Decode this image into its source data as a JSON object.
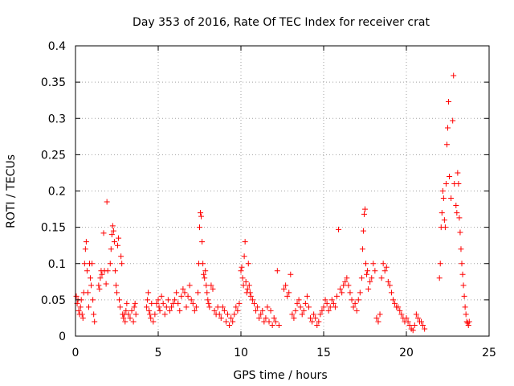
{
  "chart_data": {
    "type": "scatter",
    "title": "Day 353 of 2016, Rate Of TEC Index for receiver crat",
    "xlabel": "GPS time / hours",
    "ylabel": "ROTI / TECUs",
    "xlim": [
      0,
      25
    ],
    "ylim": [
      0,
      0.4
    ],
    "x_ticks": [
      "0",
      "5",
      "10",
      "15",
      "20",
      "25"
    ],
    "y_ticks": [
      "0",
      "0.05",
      "0.1",
      "0.15",
      "0.2",
      "0.25",
      "0.3",
      "0.35",
      "0.4"
    ],
    "grid": true,
    "marker": "+",
    "marker_color": "#ff0000",
    "series": [
      {
        "points": [
          [
            0.05,
            0.055
          ],
          [
            0.1,
            0.045
          ],
          [
            0.15,
            0.05
          ],
          [
            0.2,
            0.035
          ],
          [
            0.25,
            0.03
          ],
          [
            0.3,
            0.04
          ],
          [
            0.35,
            0.05
          ],
          [
            0.4,
            0.03
          ],
          [
            0.45,
            0.025
          ],
          [
            0.5,
            0.06
          ],
          [
            0.55,
            0.1
          ],
          [
            0.6,
            0.12
          ],
          [
            0.65,
            0.13
          ],
          [
            0.7,
            0.09
          ],
          [
            0.75,
            0.06
          ],
          [
            0.8,
            0.04
          ],
          [
            0.85,
            0.1
          ],
          [
            0.9,
            0.08
          ],
          [
            0.95,
            0.07
          ],
          [
            1.0,
            0.1
          ],
          [
            1.05,
            0.05
          ],
          [
            1.1,
            0.03
          ],
          [
            1.15,
            0.02
          ],
          [
            1.4,
            0.07
          ],
          [
            1.45,
            0.065
          ],
          [
            1.5,
            0.08
          ],
          [
            1.55,
            0.09
          ],
          [
            1.6,
            0.085
          ],
          [
            1.7,
            0.142
          ],
          [
            1.75,
            0.09
          ],
          [
            1.85,
            0.072
          ],
          [
            1.9,
            0.185
          ],
          [
            1.95,
            0.09
          ],
          [
            2.1,
            0.1
          ],
          [
            2.15,
            0.12
          ],
          [
            2.2,
            0.14
          ],
          [
            2.25,
            0.152
          ],
          [
            2.3,
            0.145
          ],
          [
            2.35,
            0.13
          ],
          [
            2.4,
            0.09
          ],
          [
            2.45,
            0.07
          ],
          [
            2.5,
            0.06
          ],
          [
            2.55,
            0.125
          ],
          [
            2.6,
            0.135
          ],
          [
            2.65,
            0.05
          ],
          [
            2.7,
            0.04
          ],
          [
            2.75,
            0.11
          ],
          [
            2.8,
            0.1
          ],
          [
            2.85,
            0.03
          ],
          [
            2.9,
            0.025
          ],
          [
            2.95,
            0.03
          ],
          [
            3.0,
            0.02
          ],
          [
            3.05,
            0.035
          ],
          [
            3.1,
            0.045
          ],
          [
            3.2,
            0.03
          ],
          [
            3.3,
            0.025
          ],
          [
            3.4,
            0.035
          ],
          [
            3.5,
            0.02
          ],
          [
            3.55,
            0.04
          ],
          [
            3.6,
            0.045
          ],
          [
            3.65,
            0.03
          ],
          [
            4.3,
            0.04
          ],
          [
            4.35,
            0.05
          ],
          [
            4.4,
            0.06
          ],
          [
            4.45,
            0.035
          ],
          [
            4.5,
            0.03
          ],
          [
            4.55,
            0.025
          ],
          [
            4.6,
            0.045
          ],
          [
            4.7,
            0.02
          ],
          [
            4.8,
            0.03
          ],
          [
            4.9,
            0.045
          ],
          [
            5.0,
            0.05
          ],
          [
            5.05,
            0.04
          ],
          [
            5.1,
            0.035
          ],
          [
            5.2,
            0.055
          ],
          [
            5.3,
            0.045
          ],
          [
            5.4,
            0.03
          ],
          [
            5.5,
            0.04
          ],
          [
            5.6,
            0.05
          ],
          [
            5.7,
            0.035
          ],
          [
            5.8,
            0.04
          ],
          [
            5.9,
            0.045
          ],
          [
            6.0,
            0.05
          ],
          [
            6.1,
            0.06
          ],
          [
            6.2,
            0.045
          ],
          [
            6.3,
            0.035
          ],
          [
            6.4,
            0.055
          ],
          [
            6.5,
            0.065
          ],
          [
            6.6,
            0.06
          ],
          [
            6.7,
            0.04
          ],
          [
            6.8,
            0.055
          ],
          [
            6.9,
            0.07
          ],
          [
            7.0,
            0.05
          ],
          [
            7.1,
            0.045
          ],
          [
            7.2,
            0.035
          ],
          [
            7.3,
            0.04
          ],
          [
            7.4,
            0.06
          ],
          [
            7.45,
            0.1
          ],
          [
            7.5,
            0.15
          ],
          [
            7.55,
            0.17
          ],
          [
            7.6,
            0.165
          ],
          [
            7.65,
            0.13
          ],
          [
            7.7,
            0.1
          ],
          [
            7.75,
            0.085
          ],
          [
            7.8,
            0.08
          ],
          [
            7.85,
            0.09
          ],
          [
            7.9,
            0.07
          ],
          [
            7.95,
            0.06
          ],
          [
            8.0,
            0.05
          ],
          [
            8.05,
            0.045
          ],
          [
            8.1,
            0.04
          ],
          [
            8.2,
            0.07
          ],
          [
            8.3,
            0.065
          ],
          [
            8.4,
            0.035
          ],
          [
            8.5,
            0.03
          ],
          [
            8.6,
            0.04
          ],
          [
            8.7,
            0.03
          ],
          [
            8.8,
            0.025
          ],
          [
            8.9,
            0.04
          ],
          [
            9.0,
            0.035
          ],
          [
            9.1,
            0.02
          ],
          [
            9.2,
            0.03
          ],
          [
            9.3,
            0.015
          ],
          [
            9.4,
            0.025
          ],
          [
            9.5,
            0.02
          ],
          [
            9.6,
            0.03
          ],
          [
            9.7,
            0.04
          ],
          [
            9.8,
            0.035
          ],
          [
            9.9,
            0.045
          ],
          [
            10.0,
            0.09
          ],
          [
            10.05,
            0.095
          ],
          [
            10.1,
            0.08
          ],
          [
            10.15,
            0.07
          ],
          [
            10.2,
            0.11
          ],
          [
            10.25,
            0.13
          ],
          [
            10.3,
            0.075
          ],
          [
            10.35,
            0.06
          ],
          [
            10.4,
            0.065
          ],
          [
            10.45,
            0.1
          ],
          [
            10.5,
            0.07
          ],
          [
            10.55,
            0.06
          ],
          [
            10.6,
            0.055
          ],
          [
            10.7,
            0.05
          ],
          [
            10.8,
            0.045
          ],
          [
            10.9,
            0.035
          ],
          [
            11.0,
            0.04
          ],
          [
            11.1,
            0.025
          ],
          [
            11.2,
            0.03
          ],
          [
            11.3,
            0.035
          ],
          [
            11.4,
            0.02
          ],
          [
            11.5,
            0.025
          ],
          [
            11.6,
            0.04
          ],
          [
            11.7,
            0.02
          ],
          [
            11.8,
            0.035
          ],
          [
            11.9,
            0.015
          ],
          [
            12.0,
            0.025
          ],
          [
            12.1,
            0.02
          ],
          [
            12.2,
            0.09
          ],
          [
            12.3,
            0.015
          ],
          [
            12.6,
            0.065
          ],
          [
            12.7,
            0.07
          ],
          [
            12.8,
            0.055
          ],
          [
            12.9,
            0.06
          ],
          [
            13.0,
            0.085
          ],
          [
            13.1,
            0.03
          ],
          [
            13.2,
            0.025
          ],
          [
            13.3,
            0.035
          ],
          [
            13.4,
            0.045
          ],
          [
            13.5,
            0.05
          ],
          [
            13.6,
            0.04
          ],
          [
            13.7,
            0.03
          ],
          [
            13.8,
            0.035
          ],
          [
            13.9,
            0.045
          ],
          [
            14.0,
            0.055
          ],
          [
            14.1,
            0.04
          ],
          [
            14.2,
            0.025
          ],
          [
            14.3,
            0.02
          ],
          [
            14.4,
            0.03
          ],
          [
            14.5,
            0.025
          ],
          [
            14.6,
            0.015
          ],
          [
            14.7,
            0.02
          ],
          [
            14.8,
            0.03
          ],
          [
            14.9,
            0.035
          ],
          [
            15.0,
            0.04
          ],
          [
            15.1,
            0.05
          ],
          [
            15.2,
            0.045
          ],
          [
            15.3,
            0.035
          ],
          [
            15.4,
            0.04
          ],
          [
            15.5,
            0.05
          ],
          [
            15.6,
            0.045
          ],
          [
            15.7,
            0.04
          ],
          [
            15.8,
            0.055
          ],
          [
            15.9,
            0.147
          ],
          [
            16.0,
            0.065
          ],
          [
            16.1,
            0.06
          ],
          [
            16.2,
            0.07
          ],
          [
            16.3,
            0.075
          ],
          [
            16.4,
            0.08
          ],
          [
            16.5,
            0.07
          ],
          [
            16.6,
            0.06
          ],
          [
            16.7,
            0.05
          ],
          [
            16.8,
            0.04
          ],
          [
            16.9,
            0.045
          ],
          [
            17.0,
            0.035
          ],
          [
            17.1,
            0.05
          ],
          [
            17.2,
            0.06
          ],
          [
            17.3,
            0.08
          ],
          [
            17.35,
            0.12
          ],
          [
            17.4,
            0.145
          ],
          [
            17.45,
            0.168
          ],
          [
            17.5,
            0.175
          ],
          [
            17.55,
            0.1
          ],
          [
            17.6,
            0.085
          ],
          [
            17.65,
            0.09
          ],
          [
            17.7,
            0.065
          ],
          [
            17.8,
            0.075
          ],
          [
            17.9,
            0.08
          ],
          [
            18.0,
            0.1
          ],
          [
            18.1,
            0.09
          ],
          [
            18.2,
            0.025
          ],
          [
            18.3,
            0.02
          ],
          [
            18.4,
            0.03
          ],
          [
            18.5,
            0.08
          ],
          [
            18.6,
            0.1
          ],
          [
            18.7,
            0.09
          ],
          [
            18.8,
            0.095
          ],
          [
            18.9,
            0.075
          ],
          [
            19.0,
            0.07
          ],
          [
            19.1,
            0.06
          ],
          [
            19.2,
            0.05
          ],
          [
            19.3,
            0.045
          ],
          [
            19.4,
            0.04
          ],
          [
            19.5,
            0.04
          ],
          [
            19.6,
            0.035
          ],
          [
            19.7,
            0.03
          ],
          [
            19.8,
            0.025
          ],
          [
            19.9,
            0.02
          ],
          [
            20.0,
            0.025
          ],
          [
            20.1,
            0.02
          ],
          [
            20.2,
            0.015
          ],
          [
            20.3,
            0.01
          ],
          [
            20.4,
            0.008
          ],
          [
            20.5,
            0.015
          ],
          [
            20.6,
            0.03
          ],
          [
            20.7,
            0.025
          ],
          [
            20.8,
            0.02
          ],
          [
            20.9,
            0.02
          ],
          [
            21.0,
            0.015
          ],
          [
            21.1,
            0.01
          ],
          [
            22.0,
            0.08
          ],
          [
            22.05,
            0.1
          ],
          [
            22.1,
            0.15
          ],
          [
            22.15,
            0.17
          ],
          [
            22.2,
            0.2
          ],
          [
            22.25,
            0.19
          ],
          [
            22.3,
            0.16
          ],
          [
            22.35,
            0.15
          ],
          [
            22.4,
            0.21
          ],
          [
            22.45,
            0.264
          ],
          [
            22.5,
            0.287
          ],
          [
            22.55,
            0.323
          ],
          [
            22.6,
            0.22
          ],
          [
            22.7,
            0.19
          ],
          [
            22.8,
            0.297
          ],
          [
            22.85,
            0.359
          ],
          [
            22.9,
            0.21
          ],
          [
            23.0,
            0.18
          ],
          [
            23.05,
            0.17
          ],
          [
            23.1,
            0.225
          ],
          [
            23.15,
            0.21
          ],
          [
            23.2,
            0.163
          ],
          [
            23.25,
            0.143
          ],
          [
            23.3,
            0.12
          ],
          [
            23.35,
            0.1
          ],
          [
            23.4,
            0.085
          ],
          [
            23.45,
            0.07
          ],
          [
            23.5,
            0.055
          ],
          [
            23.55,
            0.04
          ],
          [
            23.6,
            0.03
          ],
          [
            23.65,
            0.02
          ],
          [
            23.7,
            0.018
          ],
          [
            23.75,
            0.015
          ],
          [
            23.8,
            0.02
          ]
        ]
      }
    ]
  }
}
